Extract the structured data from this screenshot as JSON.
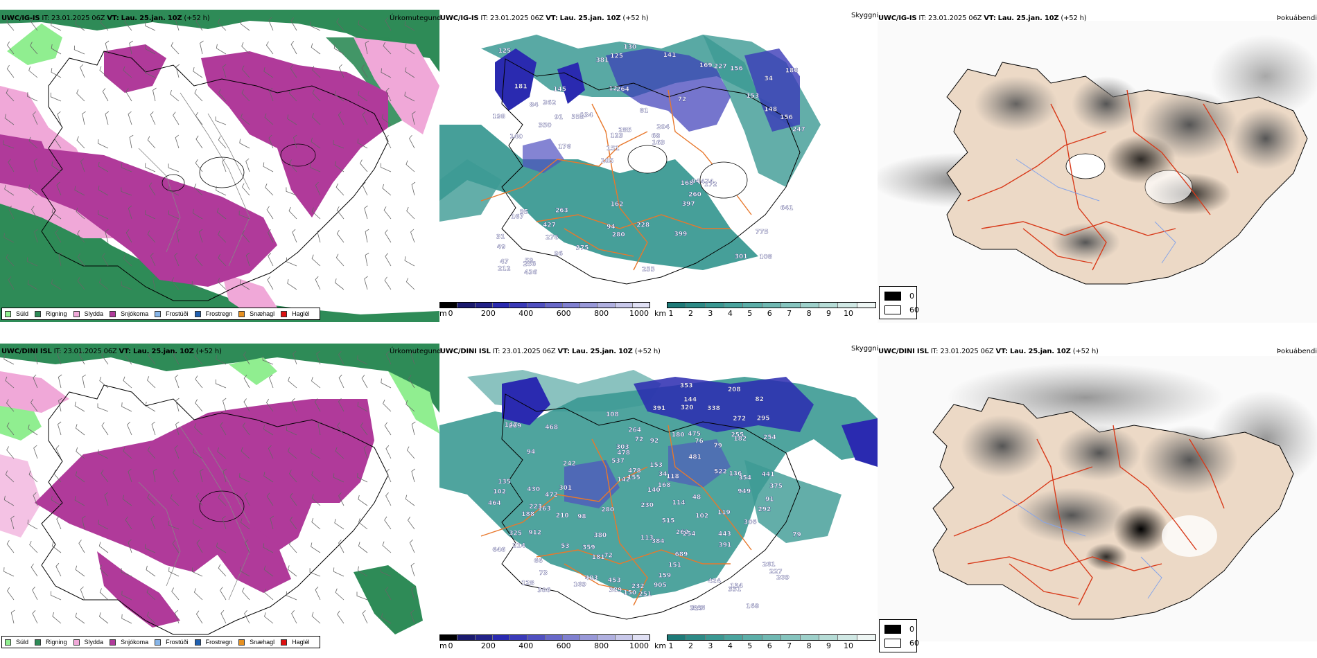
{
  "rows": [
    {
      "model_label": "UWC/IG-IS",
      "init_prefix": "IT:",
      "init_time": "23.01.2025 06Z",
      "valid_prefix": "VT:",
      "valid_time": "Lau. 25.jan. 10Z",
      "lead_time": "(+52 h)",
      "snow_numbers": [
        "108",
        "140",
        "34",
        "105",
        "72",
        "59",
        "12",
        "81",
        "95",
        "134",
        "49",
        "276",
        "264",
        "204",
        "172",
        "181",
        "125",
        "247",
        "168",
        "148",
        "151",
        "94",
        "123",
        "145",
        "169",
        "263",
        "301",
        "775",
        "474",
        "255",
        "355",
        "350",
        "397",
        "96",
        "156",
        "68",
        "47",
        "280",
        "163",
        "167",
        "153",
        "186",
        "260",
        "399",
        "427",
        "436",
        "212",
        "228",
        "156",
        "130",
        "176",
        "198",
        "362",
        "227",
        "256",
        "141",
        "381",
        "285",
        "641",
        "162",
        "375",
        "94",
        "91",
        "31",
        "125",
        "84"
      ]
    },
    {
      "model_label": "UWC/DINI ISL",
      "init_prefix": "IT:",
      "init_time": "23.01.2025 06Z",
      "valid_prefix": "VT:",
      "valid_time": "Lau. 25.jan. 10Z",
      "lead_time": "(+52 h)",
      "snow_numbers": [
        "168",
        "163",
        "262",
        "269",
        "261",
        "94",
        "73",
        "98",
        "79",
        "72",
        "76",
        "331",
        "181",
        "108",
        "114",
        "214",
        "119",
        "140",
        "135",
        "128",
        "82",
        "92",
        "136",
        "79",
        "91",
        "430",
        "210",
        "230",
        "155",
        "295",
        "254",
        "188",
        "359",
        "475",
        "303",
        "306",
        "292",
        "424",
        "272",
        "318",
        "380",
        "384",
        "403",
        "353",
        "280",
        "472",
        "254",
        "144",
        "180",
        "113",
        "102",
        "441",
        "443",
        "354",
        "537",
        "464",
        "389",
        "478",
        "515",
        "522",
        "453",
        "255",
        "468",
        "391",
        "646",
        "325",
        "301",
        "168",
        "338",
        "182",
        "391",
        "232",
        "151",
        "209",
        "481",
        "375",
        "264",
        "689",
        "223",
        "320",
        "48",
        "34",
        "134",
        "306",
        "153",
        "169",
        "478",
        "72",
        "142",
        "208",
        "150",
        "159",
        "118",
        "147",
        "102",
        "66",
        "905",
        "912",
        "949",
        "242",
        "53",
        "227",
        "251",
        "346"
      ]
    }
  ],
  "panel_titles": {
    "precip_type": "Úrkomutegund",
    "visibility": "Skyggni",
    "fog": "Þokuábendi"
  },
  "precip_legend": [
    {
      "label": "Súld",
      "color": "#90ee90"
    },
    {
      "label": "Rigning",
      "color": "#2e8b57"
    },
    {
      "label": "Slydda",
      "color": "#f0a8d8"
    },
    {
      "label": "Snjókoma",
      "color": "#b03a9a"
    },
    {
      "label": "Frostúði",
      "color": "#87b5e8"
    },
    {
      "label": "Frostregn",
      "color": "#2060b0"
    },
    {
      "label": "Snæhagl",
      "color": "#e69020"
    },
    {
      "label": "Haglél",
      "color": "#dd1010"
    }
  ],
  "colorbar_m": {
    "unit": "m",
    "ticks": [
      "0",
      "200",
      "400",
      "600",
      "800",
      "1000"
    ],
    "colors": [
      "#000000",
      "#1a1a6e",
      "#222288",
      "#2a2ab0",
      "#3a3ab8",
      "#5050c0",
      "#6868c8",
      "#8080d0",
      "#9898d8",
      "#b0b0e0",
      "#c8c8ea",
      "#e0e0f4"
    ]
  },
  "colorbar_km": {
    "unit": "km",
    "ticks": [
      "1",
      "2",
      "3",
      "4",
      "5",
      "6",
      "7",
      "8",
      "9",
      "10"
    ],
    "colors": [
      "#1e7a78",
      "#2d8a86",
      "#3a9892",
      "#4aa49e",
      "#5caea8",
      "#70b8b2",
      "#86c4be",
      "#9ed0ca",
      "#b6dcd6",
      "#d0e8e4",
      "#eef6f4"
    ]
  },
  "fog_legend": [
    {
      "label": "0",
      "color": "#000000"
    },
    {
      "label": "60",
      "color": "#ffffff"
    }
  ],
  "colors": {
    "land_tan": "#ecd9c6",
    "road_orange": "#e8782c",
    "road_red": "#d83a1a",
    "teal": "#3c9a94",
    "snow_blue": "#2a2ab0"
  }
}
